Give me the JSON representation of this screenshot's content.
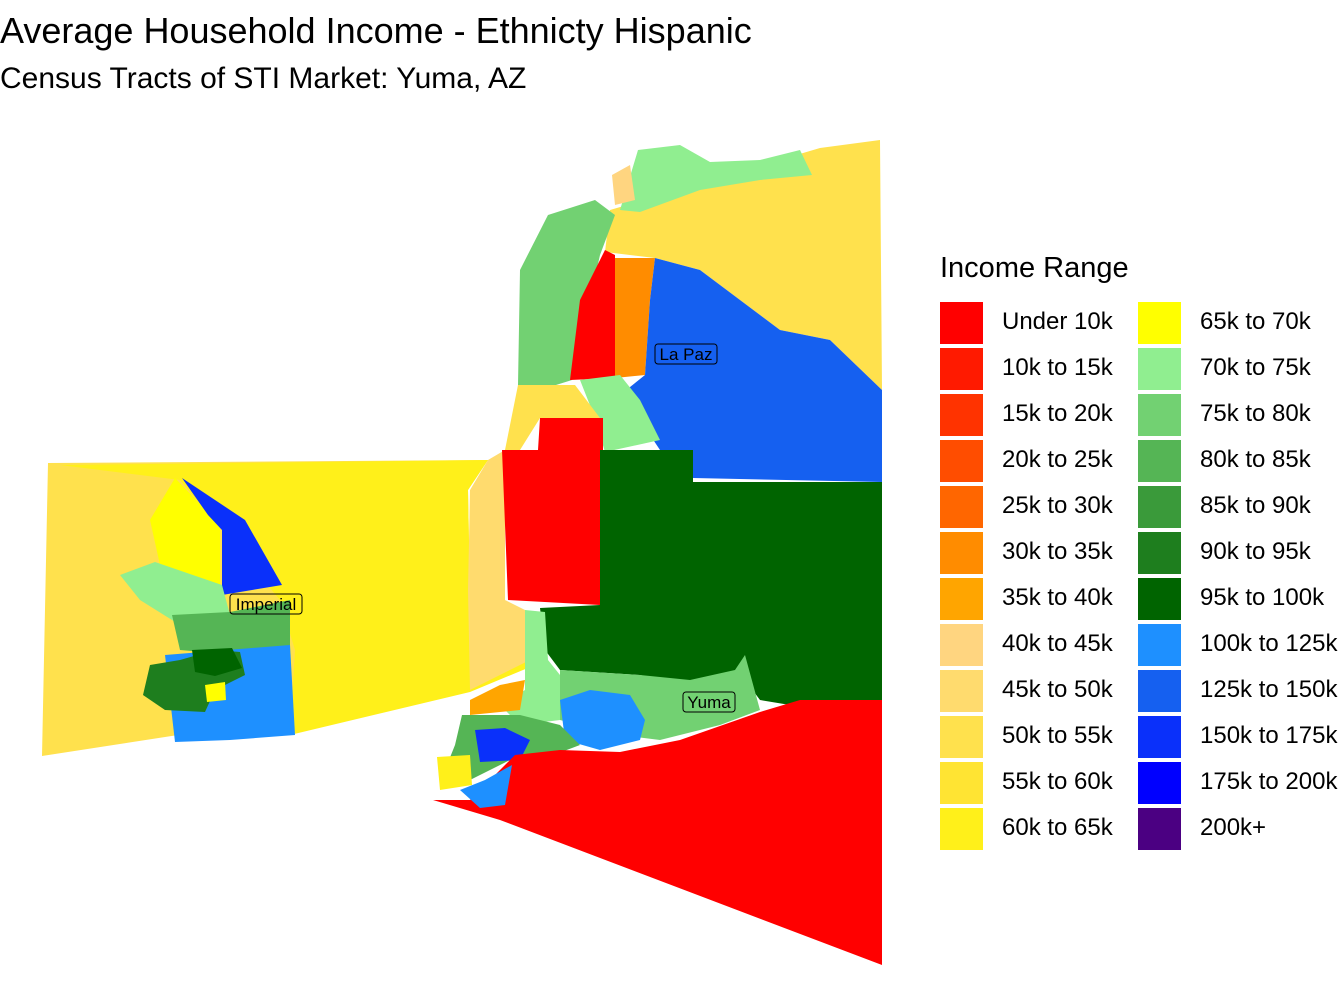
{
  "title": "Average Household Income - Ethnicty Hispanic",
  "subtitle": "Census Tracts of STI Market: Yuma, AZ",
  "map_labels": {
    "la_paz": "La Paz",
    "imperial": "Imperial",
    "yuma": "Yuma"
  },
  "legend": {
    "title": "Income Range",
    "items": [
      {
        "label": "Under 10k",
        "color": "#FF0000"
      },
      {
        "label": "10k to 15k",
        "color": "#FF1A00"
      },
      {
        "label": "15k to 20k",
        "color": "#FF3300"
      },
      {
        "label": "20k to 25k",
        "color": "#FF4D00"
      },
      {
        "label": "25k to 30k",
        "color": "#FF6600"
      },
      {
        "label": "30k to 35k",
        "color": "#FF8C00"
      },
      {
        "label": "35k to 40k",
        "color": "#FFA500"
      },
      {
        "label": "40k to 45k",
        "color": "#FFD580"
      },
      {
        "label": "45k to 50k",
        "color": "#FFDB6E"
      },
      {
        "label": "50k to 55k",
        "color": "#FFE14D"
      },
      {
        "label": "55k to 60k",
        "color": "#FFE433"
      },
      {
        "label": "60k to 65k",
        "color": "#FFF01A"
      },
      {
        "label": "65k to 70k",
        "color": "#FFFF00"
      },
      {
        "label": "70k to 75k",
        "color": "#90EE90"
      },
      {
        "label": "75k to 80k",
        "color": "#72D172"
      },
      {
        "label": "80k to 85k",
        "color": "#55B555"
      },
      {
        "label": "85k to 90k",
        "color": "#3A9A3A"
      },
      {
        "label": "90k to 95k",
        "color": "#1E7E1E"
      },
      {
        "label": "95k to 100k",
        "color": "#006400"
      },
      {
        "label": "100k to 125k",
        "color": "#1E90FF"
      },
      {
        "label": "125k to 150k",
        "color": "#1560F0"
      },
      {
        "label": "150k to 175k",
        "color": "#0A30FA"
      },
      {
        "label": "175k to 200k",
        "color": "#0000FF"
      },
      {
        "label": "200k+",
        "color": "#4B0082"
      }
    ]
  }
}
